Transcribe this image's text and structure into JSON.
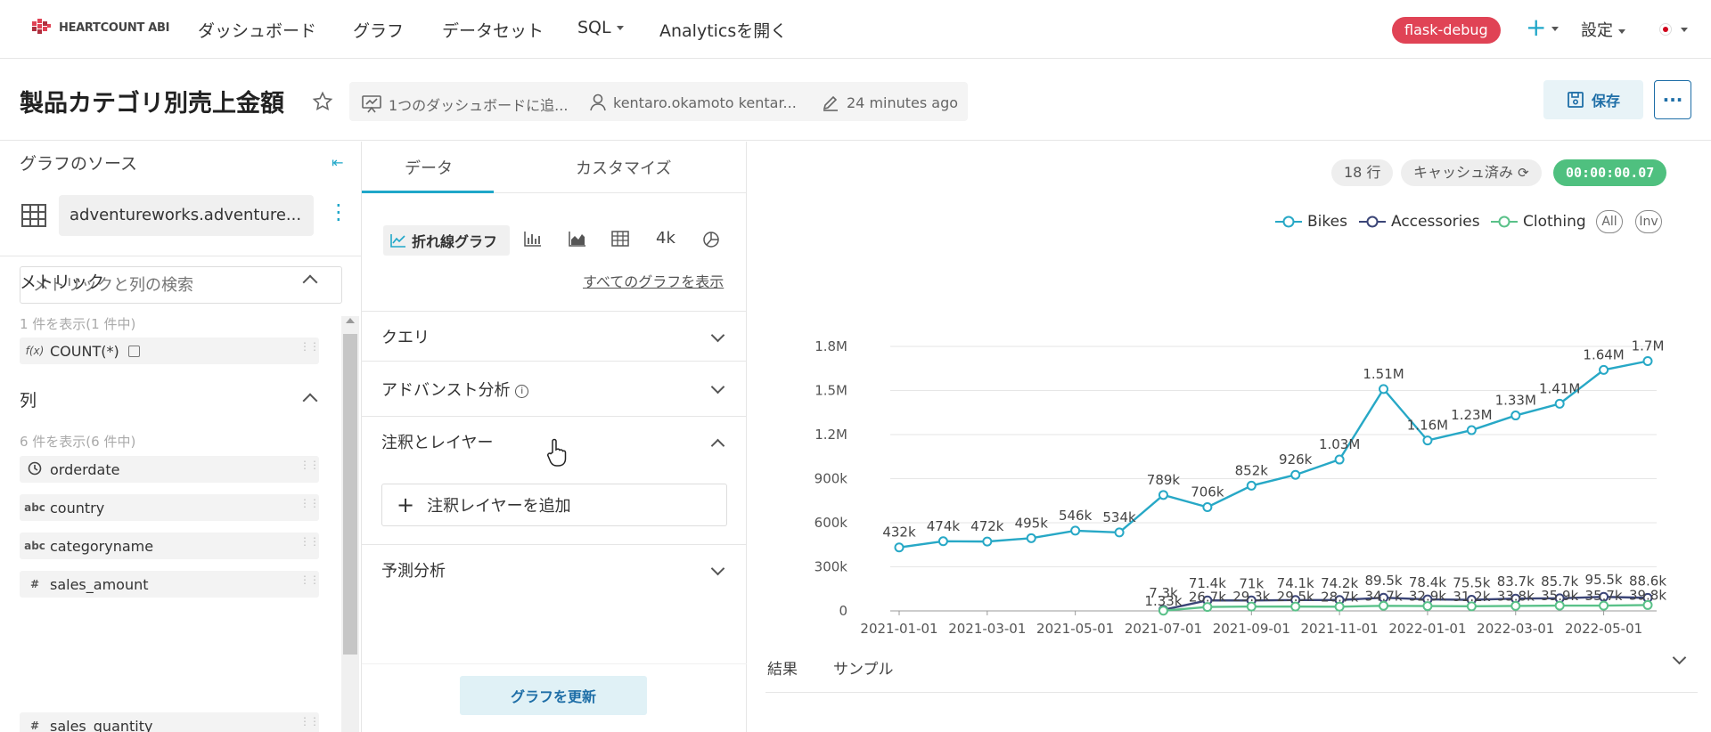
{
  "nav": {
    "brand": "HEARTCOUNT ABI",
    "items": [
      "ダッシュボード",
      "グラフ",
      "データセット",
      "SQL",
      "Analyticsを開く"
    ],
    "env": "flask-debug",
    "settings": "設定"
  },
  "header": {
    "title": "製品カテゴリ別売上金額",
    "dashboards": "1つのダッシュボードに追...",
    "owner": "kentaro.okamoto kentar...",
    "modified": "24 minutes ago",
    "save": "保存"
  },
  "left": {
    "source_title": "グラフのソース",
    "dataset": "adventureworks.adventure...",
    "search_placeholder": "メトリックと列の検索",
    "metrics_title": "メトリック",
    "metrics_count": "1 件を表示(1 件中)",
    "metric": {
      "type": "f(x)",
      "name": "COUNT(*)"
    },
    "columns_title": "列",
    "columns_count": "6 件を表示(6 件中)",
    "columns": [
      {
        "type": "clock",
        "name": "orderdate"
      },
      {
        "type": "abc",
        "name": "country"
      },
      {
        "type": "abc",
        "name": "categoryname"
      },
      {
        "type": "#",
        "name": "sales_amount"
      },
      {
        "type": "#",
        "name": "sales_quantity"
      }
    ]
  },
  "mid": {
    "tab_data": "データ",
    "tab_customize": "カスタマイズ",
    "chart_type_active": "折れ線グラフ",
    "big_number": "4k",
    "all_charts": "すべてのグラフを表示",
    "query": "クエリ",
    "advanced": "アドバンスト分析",
    "annotations": "注釈とレイヤー",
    "add_layer": "注釈レイヤーを追加",
    "forecast": "予測分析",
    "update": "グラフを更新"
  },
  "right": {
    "rows": "18 行",
    "cache": "キャッシュ済み",
    "timer": "00:00:00.07",
    "legend_all": "All",
    "legend_inv": "Inv",
    "tab_results": "結果",
    "tab_samples": "サンプル"
  },
  "colors": {
    "bikes": "#27a8c6",
    "accessories": "#3b4577",
    "clothing": "#5ac189",
    "accent": "#20a7c9",
    "env": "#e04355",
    "timer": "#4fc07f"
  },
  "chart_data": {
    "type": "line",
    "x": [
      "2021-01-01",
      "2021-02-01",
      "2021-03-01",
      "2021-04-01",
      "2021-05-01",
      "2021-06-01",
      "2021-07-01",
      "2021-08-01",
      "2021-09-01",
      "2021-10-01",
      "2021-11-01",
      "2021-12-01",
      "2022-01-01",
      "2022-02-01",
      "2022-03-01",
      "2022-04-01",
      "2022-05-01",
      "2022-06-01"
    ],
    "x_ticks": [
      "2021-01-01",
      "2021-03-01",
      "2021-05-01",
      "2021-07-01",
      "2021-09-01",
      "2021-11-01",
      "2022-01-01",
      "2022-03-01",
      "2022-05-01"
    ],
    "y_ticks": [
      0,
      300000,
      600000,
      900000,
      1200000,
      1500000,
      1800000
    ],
    "y_tick_labels": [
      "0",
      "300k",
      "600k",
      "900k",
      "1.2M",
      "1.5M",
      "1.8M"
    ],
    "ylim": [
      0,
      1800000
    ],
    "legend_position": "top-right",
    "series": [
      {
        "name": "Bikes",
        "color": "#27a8c6",
        "values": [
          432000,
          474000,
          472000,
          495000,
          546000,
          534000,
          789000,
          706000,
          852000,
          926000,
          1030000,
          1510000,
          1160000,
          1230000,
          1330000,
          1410000,
          1640000,
          1700000
        ],
        "labels": [
          "432k",
          "474k",
          "472k",
          "495k",
          "546k",
          "534k",
          "789k",
          "706k",
          "852k",
          "926k",
          "1.03M",
          "1.51M",
          "1.16M",
          "1.23M",
          "1.33M",
          "1.41M",
          "1.64M",
          "1.7M"
        ]
      },
      {
        "name": "Accessories",
        "color": "#3b4577",
        "values": [
          null,
          null,
          null,
          null,
          null,
          null,
          7300,
          71400,
          71000,
          74100,
          74200,
          89500,
          78400,
          75500,
          83700,
          85700,
          95500,
          88600
        ],
        "labels": [
          "",
          "",
          "",
          "",
          "",
          "",
          "7.3k",
          "71.4k",
          "71k",
          "74.1k",
          "74.2k",
          "89.5k",
          "78.4k",
          "75.5k",
          "83.7k",
          "85.7k",
          "95.5k",
          "88.6k"
        ]
      },
      {
        "name": "Clothing",
        "color": "#5ac189",
        "values": [
          null,
          null,
          null,
          null,
          null,
          null,
          1330,
          26700,
          29300,
          29500,
          28700,
          34700,
          32900,
          31200,
          33800,
          35900,
          35700,
          39800
        ],
        "labels": [
          "",
          "",
          "",
          "",
          "",
          "",
          "1.33k",
          "26.7k",
          "29.3k",
          "29.5k",
          "28.7k",
          "34.7k",
          "32.9k",
          "31.2k",
          "33.8k",
          "35.9k",
          "35.7k",
          "39.8k"
        ]
      }
    ]
  }
}
